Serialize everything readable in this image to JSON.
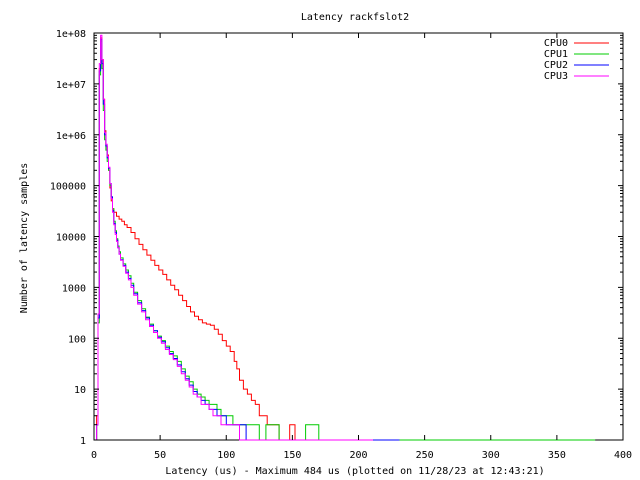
{
  "chart_data": {
    "type": "line",
    "title": "Latency rackfslot2",
    "xlabel": "Latency (us) - Maximum 484 us (plotted on 11/28/23 at 12:43:21)",
    "ylabel": "Number of latency samples",
    "xlim": [
      0,
      400
    ],
    "ylim": [
      1,
      100000000
    ],
    "yscale": "log",
    "x_ticks": [
      0,
      50,
      100,
      150,
      200,
      250,
      300,
      350,
      400
    ],
    "x_tick_labels": [
      "0",
      "50",
      "100",
      "150",
      "200",
      "250",
      "300",
      "350",
      "400"
    ],
    "y_ticks": [
      1,
      10,
      100,
      1000,
      10000,
      100000,
      1000000,
      10000000,
      100000000
    ],
    "y_tick_labels": [
      "1",
      "10",
      "100",
      "1000",
      "10000",
      "100000",
      "1e+06",
      "1e+07",
      "1e+08"
    ],
    "grid": false,
    "legend_position": "top-right",
    "series": [
      {
        "name": "CPU0",
        "color": "#ff0000",
        "points": [
          [
            1,
            1
          ],
          [
            2,
            3
          ],
          [
            3,
            300
          ],
          [
            4,
            20000000
          ],
          [
            5,
            80000000
          ],
          [
            6,
            30000000
          ],
          [
            7,
            5000000
          ],
          [
            8,
            1200000
          ],
          [
            9,
            600000
          ],
          [
            10,
            400000
          ],
          [
            11,
            200000
          ],
          [
            12,
            90000
          ],
          [
            13,
            50000
          ],
          [
            14,
            35000
          ],
          [
            15,
            30000
          ],
          [
            17,
            25000
          ],
          [
            19,
            22000
          ],
          [
            21,
            20000
          ],
          [
            23,
            17000
          ],
          [
            25,
            15000
          ],
          [
            28,
            12000
          ],
          [
            31,
            9000
          ],
          [
            34,
            7000
          ],
          [
            37,
            5500
          ],
          [
            40,
            4300
          ],
          [
            43,
            3400
          ],
          [
            46,
            2700
          ],
          [
            49,
            2200
          ],
          [
            52,
            1800
          ],
          [
            55,
            1400
          ],
          [
            58,
            1100
          ],
          [
            61,
            900
          ],
          [
            64,
            700
          ],
          [
            67,
            550
          ],
          [
            70,
            420
          ],
          [
            73,
            330
          ],
          [
            76,
            270
          ],
          [
            79,
            230
          ],
          [
            82,
            200
          ],
          [
            85,
            190
          ],
          [
            88,
            180
          ],
          [
            91,
            150
          ],
          [
            94,
            120
          ],
          [
            97,
            90
          ],
          [
            100,
            70
          ],
          [
            103,
            55
          ],
          [
            106,
            35
          ],
          [
            108,
            25
          ],
          [
            110,
            15
          ],
          [
            113,
            10
          ],
          [
            116,
            8
          ],
          [
            119,
            6
          ],
          [
            122,
            5
          ],
          [
            125,
            3
          ],
          [
            128,
            3
          ],
          [
            131,
            2
          ],
          [
            134,
            2
          ],
          [
            137,
            2
          ],
          [
            140,
            1
          ],
          [
            143,
            1
          ],
          [
            148,
            2
          ],
          [
            152,
            1
          ],
          [
            156,
            1
          ],
          [
            160,
            1
          ],
          [
            165,
            1
          ],
          [
            170,
            1
          ],
          [
            175,
            1
          ],
          [
            180,
            1
          ],
          [
            190,
            1
          ],
          [
            200,
            1
          ],
          [
            210,
            1
          ],
          [
            220,
            1
          ],
          [
            250,
            1
          ],
          [
            265,
            1
          ],
          [
            280,
            1
          ],
          [
            287,
            1
          ]
        ]
      },
      {
        "name": "CPU1",
        "color": "#00cc00",
        "points": [
          [
            1,
            1
          ],
          [
            2,
            2
          ],
          [
            3,
            200
          ],
          [
            4,
            15000000
          ],
          [
            5,
            70000000
          ],
          [
            6,
            20000000
          ],
          [
            7,
            3000000
          ],
          [
            8,
            800000
          ],
          [
            9,
            500000
          ],
          [
            10,
            300000
          ],
          [
            11,
            200000
          ],
          [
            12,
            100000
          ],
          [
            13,
            60000
          ],
          [
            14,
            35000
          ],
          [
            15,
            20000
          ],
          [
            16,
            13000
          ],
          [
            17,
            9000
          ],
          [
            18,
            6500
          ],
          [
            19,
            5000
          ],
          [
            20,
            3800
          ],
          [
            22,
            2900
          ],
          [
            24,
            2200
          ],
          [
            26,
            1700
          ],
          [
            28,
            1200
          ],
          [
            30,
            800
          ],
          [
            33,
            550
          ],
          [
            36,
            380
          ],
          [
            39,
            260
          ],
          [
            42,
            190
          ],
          [
            45,
            140
          ],
          [
            48,
            110
          ],
          [
            51,
            90
          ],
          [
            54,
            70
          ],
          [
            57,
            55
          ],
          [
            60,
            45
          ],
          [
            63,
            35
          ],
          [
            66,
            25
          ],
          [
            69,
            18
          ],
          [
            72,
            14
          ],
          [
            75,
            10
          ],
          [
            78,
            8
          ],
          [
            81,
            7
          ],
          [
            84,
            6
          ],
          [
            87,
            5
          ],
          [
            90,
            5
          ],
          [
            93,
            4
          ],
          [
            96,
            3
          ],
          [
            100,
            3
          ],
          [
            105,
            2
          ],
          [
            110,
            2
          ],
          [
            115,
            2
          ],
          [
            120,
            2
          ],
          [
            125,
            1
          ],
          [
            130,
            2
          ],
          [
            140,
            1
          ],
          [
            150,
            1
          ],
          [
            160,
            2
          ],
          [
            170,
            1
          ],
          [
            180,
            1
          ],
          [
            200,
            1
          ],
          [
            220,
            1
          ],
          [
            240,
            1
          ],
          [
            260,
            1
          ],
          [
            280,
            1
          ],
          [
            300,
            1
          ],
          [
            320,
            1
          ],
          [
            340,
            1
          ],
          [
            378,
            1
          ]
        ]
      },
      {
        "name": "CPU2",
        "color": "#0000ff",
        "points": [
          [
            1,
            1
          ],
          [
            2,
            2
          ],
          [
            3,
            250
          ],
          [
            4,
            18000000
          ],
          [
            5,
            75000000
          ],
          [
            6,
            25000000
          ],
          [
            7,
            4000000
          ],
          [
            8,
            1000000
          ],
          [
            9,
            600000
          ],
          [
            10,
            350000
          ],
          [
            11,
            220000
          ],
          [
            12,
            110000
          ],
          [
            13,
            60000
          ],
          [
            14,
            32000
          ],
          [
            15,
            18000
          ],
          [
            16,
            12000
          ],
          [
            17,
            8500
          ],
          [
            18,
            6000
          ],
          [
            19,
            4500
          ],
          [
            20,
            3500
          ],
          [
            22,
            2700
          ],
          [
            24,
            2000
          ],
          [
            26,
            1500
          ],
          [
            28,
            1100
          ],
          [
            30,
            750
          ],
          [
            33,
            500
          ],
          [
            36,
            350
          ],
          [
            39,
            250
          ],
          [
            42,
            180
          ],
          [
            45,
            140
          ],
          [
            48,
            105
          ],
          [
            51,
            85
          ],
          [
            54,
            65
          ],
          [
            57,
            50
          ],
          [
            60,
            40
          ],
          [
            63,
            30
          ],
          [
            66,
            22
          ],
          [
            69,
            16
          ],
          [
            72,
            12
          ],
          [
            75,
            9
          ],
          [
            78,
            7
          ],
          [
            81,
            6
          ],
          [
            84,
            5
          ],
          [
            87,
            4
          ],
          [
            90,
            4
          ],
          [
            93,
            3
          ],
          [
            96,
            3
          ],
          [
            100,
            2
          ],
          [
            105,
            2
          ],
          [
            110,
            2
          ],
          [
            115,
            1
          ],
          [
            120,
            1
          ],
          [
            130,
            1
          ],
          [
            140,
            1
          ],
          [
            150,
            1
          ],
          [
            160,
            1
          ],
          [
            170,
            1
          ],
          [
            180,
            1
          ],
          [
            200,
            1
          ],
          [
            230,
            1
          ]
        ]
      },
      {
        "name": "CPU3",
        "color": "#ff00ff",
        "points": [
          [
            1,
            1
          ],
          [
            2,
            2
          ],
          [
            3,
            300
          ],
          [
            4,
            25000000
          ],
          [
            5,
            90000000
          ],
          [
            6,
            30000000
          ],
          [
            7,
            5000000
          ],
          [
            8,
            1100000
          ],
          [
            9,
            650000
          ],
          [
            10,
            380000
          ],
          [
            11,
            230000
          ],
          [
            12,
            110000
          ],
          [
            13,
            55000
          ],
          [
            14,
            30000
          ],
          [
            15,
            17000
          ],
          [
            16,
            11000
          ],
          [
            17,
            8000
          ],
          [
            18,
            6000
          ],
          [
            19,
            4500
          ],
          [
            20,
            3400
          ],
          [
            22,
            2600
          ],
          [
            24,
            1900
          ],
          [
            26,
            1400
          ],
          [
            28,
            1000
          ],
          [
            30,
            700
          ],
          [
            33,
            470
          ],
          [
            36,
            330
          ],
          [
            39,
            230
          ],
          [
            42,
            170
          ],
          [
            45,
            130
          ],
          [
            48,
            100
          ],
          [
            51,
            80
          ],
          [
            54,
            60
          ],
          [
            57,
            48
          ],
          [
            60,
            38
          ],
          [
            63,
            28
          ],
          [
            66,
            20
          ],
          [
            69,
            15
          ],
          [
            72,
            11
          ],
          [
            75,
            8
          ],
          [
            78,
            7
          ],
          [
            81,
            5
          ],
          [
            84,
            5
          ],
          [
            87,
            4
          ],
          [
            90,
            3
          ],
          [
            93,
            3
          ],
          [
            96,
            2
          ],
          [
            100,
            2
          ],
          [
            105,
            2
          ],
          [
            110,
            1
          ],
          [
            115,
            1
          ],
          [
            120,
            1
          ],
          [
            130,
            1
          ],
          [
            140,
            1
          ],
          [
            150,
            1
          ],
          [
            160,
            1
          ],
          [
            170,
            1
          ],
          [
            180,
            1
          ],
          [
            200,
            1
          ],
          [
            210,
            1
          ]
        ]
      }
    ]
  }
}
